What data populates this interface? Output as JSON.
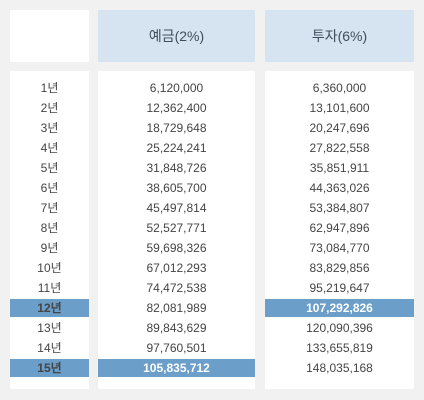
{
  "header": {
    "deposit_label": "예금(2%)",
    "investment_label": "투자(6%)"
  },
  "colors": {
    "header_bg": "#d6e4f1",
    "highlight_bg": "#6b9ec9",
    "page_bg": "#f1f1f1"
  },
  "rows": [
    {
      "year": "1년",
      "deposit": "6,120,000",
      "investment": "6,360,000"
    },
    {
      "year": "2년",
      "deposit": "12,362,400",
      "investment": "13,101,600"
    },
    {
      "year": "3년",
      "deposit": "18,729,648",
      "investment": "20,247,696"
    },
    {
      "year": "4년",
      "deposit": "25,224,241",
      "investment": "27,822,558"
    },
    {
      "year": "5년",
      "deposit": "31,848,726",
      "investment": "35,851,911"
    },
    {
      "year": "6년",
      "deposit": "38,605,700",
      "investment": "44,363,026"
    },
    {
      "year": "7년",
      "deposit": "45,497,814",
      "investment": "53,384,807"
    },
    {
      "year": "8년",
      "deposit": "52,527,771",
      "investment": "62,947,896"
    },
    {
      "year": "9년",
      "deposit": "59,698,326",
      "investment": "73,084,770"
    },
    {
      "year": "10년",
      "deposit": "67,012,293",
      "investment": "83,829,856"
    },
    {
      "year": "11년",
      "deposit": "74,472,538",
      "investment": "95,219,647"
    },
    {
      "year": "12년",
      "deposit": "82,081,989",
      "investment": "107,292,826"
    },
    {
      "year": "13년",
      "deposit": "89,843,629",
      "investment": "120,090,396"
    },
    {
      "year": "14년",
      "deposit": "97,760,501",
      "investment": "133,655,819"
    },
    {
      "year": "15년",
      "deposit": "105,835,712",
      "investment": "148,035,168"
    }
  ],
  "highlights": {
    "year_rows": [
      "12년",
      "15년"
    ],
    "deposit_rows": [
      "15년"
    ],
    "investment_rows": [
      "12년"
    ]
  }
}
